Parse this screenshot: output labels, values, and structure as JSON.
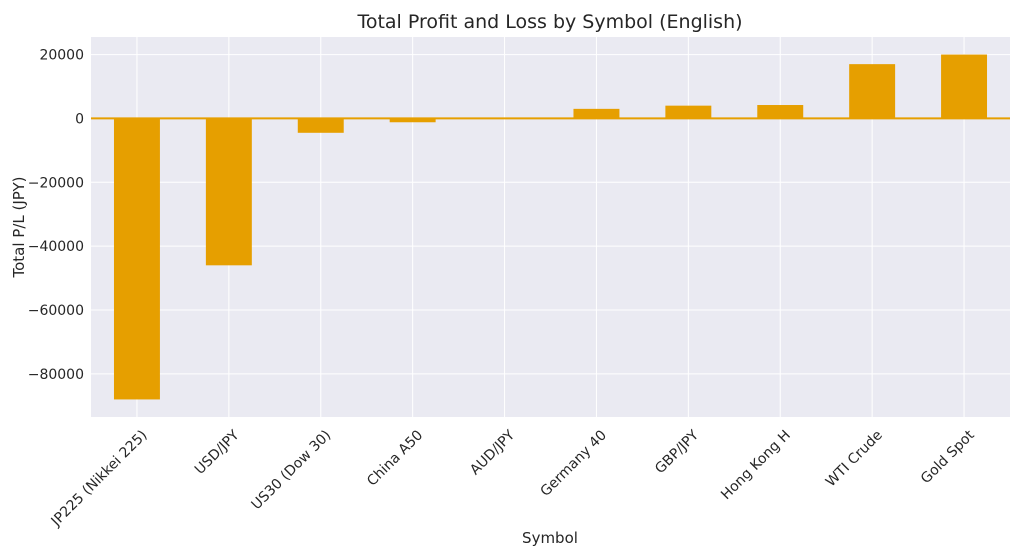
{
  "chart_data": {
    "type": "bar",
    "title": "Total Profit and Loss by Symbol (English)",
    "xlabel": "Symbol",
    "ylabel": "Total P/L (JPY)",
    "categories": [
      "JP225 (Nikkei 225)",
      "USD/JPY",
      "US30 (Dow 30)",
      "China A50",
      "AUD/JPY",
      "Germany 40",
      "GBP/JPY",
      "Hong Kong H",
      "WTI Crude",
      "Gold Spot"
    ],
    "values": [
      -88000,
      -46000,
      -4500,
      -1200,
      0,
      3000,
      4000,
      4200,
      17000,
      20000
    ],
    "ylim": [
      -93500,
      25500
    ],
    "yticks": [
      -80000,
      -60000,
      -40000,
      -20000,
      0,
      20000
    ],
    "ytick_labels": [
      "−80000",
      "−60000",
      "−40000",
      "−20000",
      "0",
      "20000"
    ],
    "grid": true,
    "zero_line": true,
    "colors": {
      "bar": "#E69F00",
      "zero_line": "#E69F00",
      "plot_background": "#EAEAF2",
      "grid": "#FFFFFF"
    }
  }
}
